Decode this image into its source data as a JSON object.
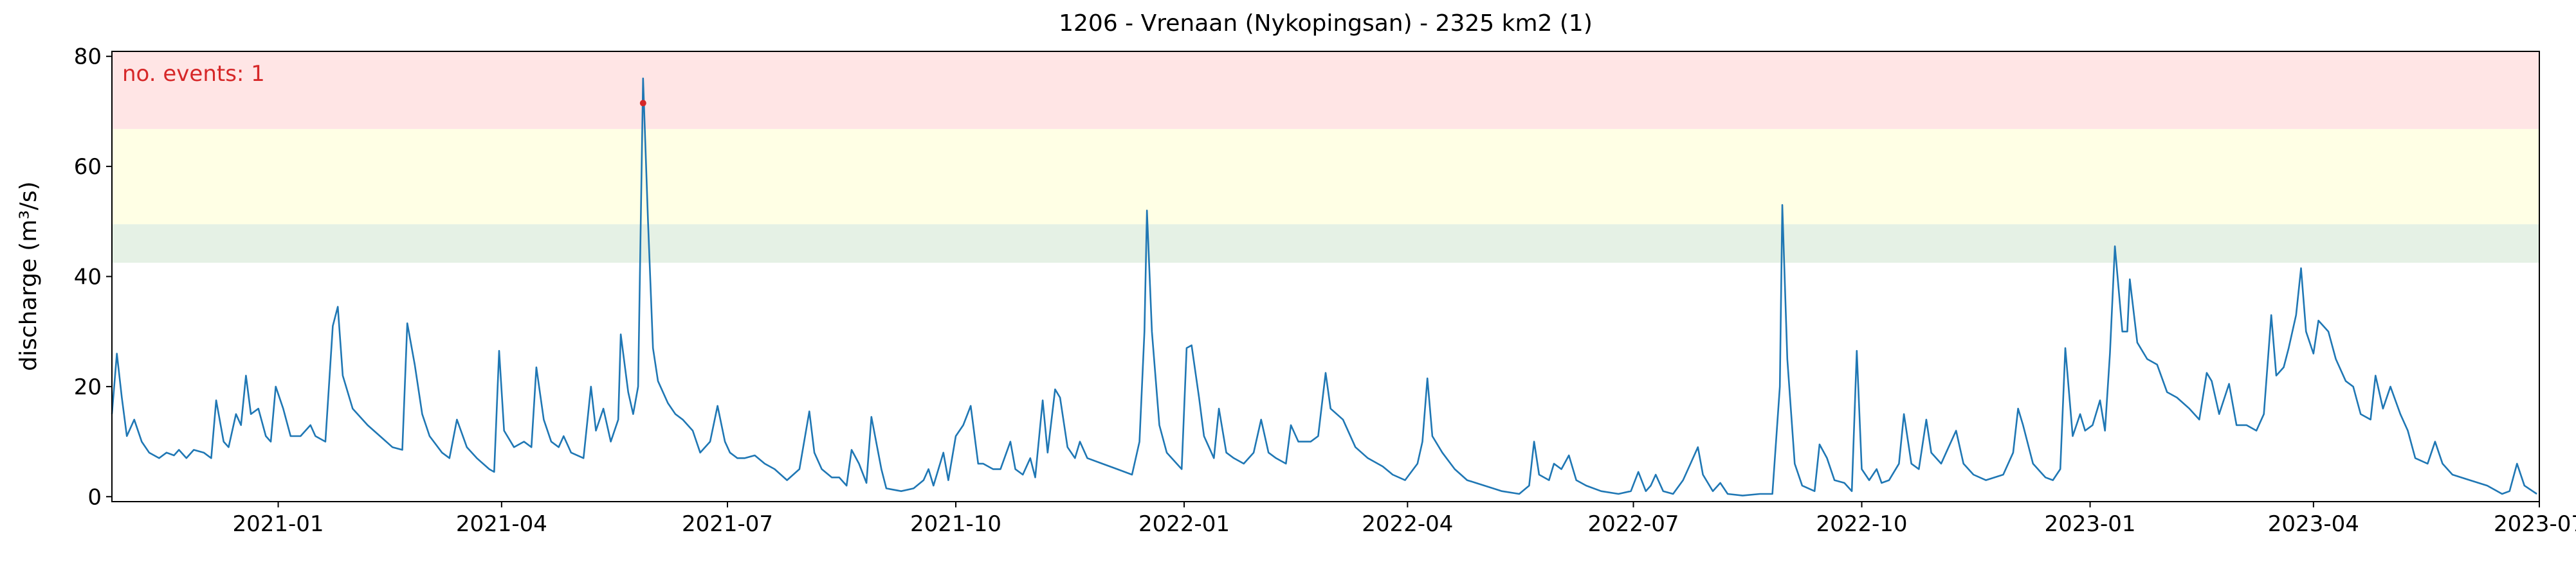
{
  "chart_data": {
    "type": "line",
    "title": "1206 - Vrenaan (Nykopingsan) - 2325 km2 (1)",
    "y_label": "discharge (m³/s)",
    "annotation": "no. events: 1",
    "color": "#1f77b4",
    "x": [
      "2020-10-26",
      "2020-10-28",
      "2020-10-30",
      "2020-11-01",
      "2020-11-04",
      "2020-11-07",
      "2020-11-10",
      "2020-11-14",
      "2020-11-17",
      "2020-11-20",
      "2020-11-22",
      "2020-11-25",
      "2020-11-28",
      "2020-12-02",
      "2020-12-05",
      "2020-12-07",
      "2020-12-10",
      "2020-12-12",
      "2020-12-15",
      "2020-12-17",
      "2020-12-19",
      "2020-12-21",
      "2020-12-24",
      "2020-12-27",
      "2020-12-29",
      "2020-12-31",
      "2021-01-03",
      "2021-01-06",
      "2021-01-10",
      "2021-01-14",
      "2021-01-16",
      "2021-01-20",
      "2021-01-23",
      "2021-01-25",
      "2021-01-27",
      "2021-01-31",
      "2021-02-06",
      "2021-02-11",
      "2021-02-16",
      "2021-02-20",
      "2021-02-22",
      "2021-02-25",
      "2021-02-28",
      "2021-03-03",
      "2021-03-08",
      "2021-03-11",
      "2021-03-14",
      "2021-03-18",
      "2021-03-22",
      "2021-03-27",
      "2021-03-29",
      "2021-03-31",
      "2021-04-02",
      "2021-04-06",
      "2021-04-10",
      "2021-04-13",
      "2021-04-15",
      "2021-04-18",
      "2021-04-21",
      "2021-04-24",
      "2021-04-26",
      "2021-04-29",
      "2021-05-04",
      "2021-05-07",
      "2021-05-09",
      "2021-05-12",
      "2021-05-15",
      "2021-05-18",
      "2021-05-19",
      "2021-05-22",
      "2021-05-24",
      "2021-05-26",
      "2021-05-28",
      "2021-05-30",
      "2021-06-01",
      "2021-06-03",
      "2021-06-07",
      "2021-06-10",
      "2021-06-13",
      "2021-06-17",
      "2021-06-20",
      "2021-06-24",
      "2021-06-27",
      "2021-06-30",
      "2021-07-02",
      "2021-07-05",
      "2021-07-08",
      "2021-07-12",
      "2021-07-16",
      "2021-07-20",
      "2021-07-25",
      "2021-07-30",
      "2021-08-03",
      "2021-08-05",
      "2021-08-08",
      "2021-08-12",
      "2021-08-15",
      "2021-08-18",
      "2021-08-20",
      "2021-08-23",
      "2021-08-26",
      "2021-08-28",
      "2021-09-01",
      "2021-09-03",
      "2021-09-09",
      "2021-09-14",
      "2021-09-18",
      "2021-09-20",
      "2021-09-22",
      "2021-09-26",
      "2021-09-28",
      "2021-10-01",
      "2021-10-04",
      "2021-10-07",
      "2021-10-10",
      "2021-10-12",
      "2021-10-16",
      "2021-10-19",
      "2021-10-23",
      "2021-10-25",
      "2021-10-28",
      "2021-10-31",
      "2021-11-02",
      "2021-11-05",
      "2021-11-07",
      "2021-11-10",
      "2021-11-12",
      "2021-11-15",
      "2021-11-18",
      "2021-11-20",
      "2021-11-23",
      "2021-11-29",
      "2021-12-05",
      "2021-12-11",
      "2021-12-14",
      "2021-12-16",
      "2021-12-17",
      "2021-12-19",
      "2021-12-22",
      "2021-12-25",
      "2021-12-29",
      "2021-12-31",
      "2022-01-02",
      "2022-01-04",
      "2022-01-07",
      "2022-01-09",
      "2022-01-13",
      "2022-01-15",
      "2022-01-18",
      "2022-01-21",
      "2022-01-25",
      "2022-01-29",
      "2022-02-01",
      "2022-02-04",
      "2022-02-07",
      "2022-02-11",
      "2022-02-13",
      "2022-02-16",
      "2022-02-21",
      "2022-02-24",
      "2022-02-27",
      "2022-03-01",
      "2022-03-06",
      "2022-03-11",
      "2022-03-16",
      "2022-03-22",
      "2022-03-26",
      "2022-03-31",
      "2022-04-05",
      "2022-04-07",
      "2022-04-09",
      "2022-04-11",
      "2022-04-15",
      "2022-04-20",
      "2022-04-25",
      "2022-05-02",
      "2022-05-09",
      "2022-05-16",
      "2022-05-20",
      "2022-05-22",
      "2022-05-24",
      "2022-05-28",
      "2022-05-30",
      "2022-06-02",
      "2022-06-05",
      "2022-06-08",
      "2022-06-12",
      "2022-06-18",
      "2022-06-25",
      "2022-06-30",
      "2022-07-03",
      "2022-07-06",
      "2022-07-08",
      "2022-07-10",
      "2022-07-13",
      "2022-07-17",
      "2022-07-21",
      "2022-07-24",
      "2022-07-27",
      "2022-07-29",
      "2022-08-02",
      "2022-08-05",
      "2022-08-08",
      "2022-08-14",
      "2022-08-21",
      "2022-08-26",
      "2022-08-29",
      "2022-08-30",
      "2022-09-01",
      "2022-09-04",
      "2022-09-07",
      "2022-09-12",
      "2022-09-14",
      "2022-09-17",
      "2022-09-20",
      "2022-09-24",
      "2022-09-27",
      "2022-09-29",
      "2022-10-01",
      "2022-10-04",
      "2022-10-07",
      "2022-10-09",
      "2022-10-12",
      "2022-10-16",
      "2022-10-18",
      "2022-10-21",
      "2022-10-24",
      "2022-10-27",
      "2022-10-29",
      "2022-11-02",
      "2022-11-04",
      "2022-11-08",
      "2022-11-11",
      "2022-11-15",
      "2022-11-20",
      "2022-11-27",
      "2022-12-01",
      "2022-12-03",
      "2022-12-05",
      "2022-12-09",
      "2022-12-14",
      "2022-12-17",
      "2022-12-20",
      "2022-12-22",
      "2022-12-25",
      "2022-12-28",
      "2022-12-30",
      "2023-01-02",
      "2023-01-05",
      "2023-01-07",
      "2023-01-09",
      "2023-01-11",
      "2023-01-14",
      "2023-01-16",
      "2023-01-17",
      "2023-01-20",
      "2023-01-24",
      "2023-01-28",
      "2023-02-01",
      "2023-02-05",
      "2023-02-10",
      "2023-02-14",
      "2023-02-17",
      "2023-02-19",
      "2023-02-22",
      "2023-02-26",
      "2023-03-01",
      "2023-03-05",
      "2023-03-09",
      "2023-03-12",
      "2023-03-15",
      "2023-03-17",
      "2023-03-20",
      "2023-03-22",
      "2023-03-25",
      "2023-03-27",
      "2023-03-29",
      "2023-04-01",
      "2023-04-03",
      "2023-04-07",
      "2023-04-10",
      "2023-04-14",
      "2023-04-17",
      "2023-04-20",
      "2023-04-24",
      "2023-04-26",
      "2023-04-29",
      "2023-05-02",
      "2023-05-06",
      "2023-05-09",
      "2023-05-12",
      "2023-05-17",
      "2023-05-20",
      "2023-05-23",
      "2023-05-27",
      "2023-06-03",
      "2023-06-10",
      "2023-06-16",
      "2023-06-19",
      "2023-06-22",
      "2023-06-25",
      "2023-06-30"
    ],
    "values": [
      15,
      26,
      18,
      11,
      14,
      10,
      8,
      7,
      8,
      7.5,
      8.5,
      7,
      8.5,
      8,
      7,
      17.5,
      10,
      9,
      15,
      13,
      22,
      15,
      16,
      11,
      10,
      20,
      16,
      11,
      11,
      13,
      11,
      10,
      31,
      34.5,
      22,
      16,
      13,
      11,
      9,
      8.5,
      31.5,
      24,
      15,
      11,
      8,
      7,
      14,
      9,
      7,
      5,
      4.5,
      26.5,
      12,
      9,
      10,
      9,
      23.5,
      14,
      10,
      9,
      11,
      8,
      7,
      20,
      12,
      16,
      10,
      14,
      29.5,
      19,
      15,
      20,
      76,
      50,
      27,
      21,
      17,
      15,
      14,
      12,
      8,
      10,
      16.5,
      10,
      8,
      7,
      7,
      7.5,
      6,
      5,
      3,
      5,
      15.5,
      8,
      5,
      3.5,
      3.5,
      2,
      8.5,
      6,
      2.5,
      14.5,
      5,
      1.5,
      1,
      1.5,
      3,
      5,
      2,
      8,
      3,
      11,
      13,
      16.5,
      6,
      6,
      5,
      5,
      10,
      5,
      4,
      7,
      3.5,
      17.5,
      8,
      19.5,
      18,
      9,
      7,
      10,
      7,
      6,
      5,
      4,
      10,
      30,
      52,
      30,
      13,
      8,
      6,
      5,
      27,
      27.5,
      18,
      11,
      7,
      16,
      8,
      7,
      6,
      8,
      14,
      8,
      7,
      6,
      13,
      10,
      10,
      11,
      22.5,
      16,
      14,
      9,
      7,
      5.5,
      4,
      3,
      6,
      10,
      21.5,
      11,
      8,
      5,
      3,
      2,
      1,
      0.5,
      2,
      10,
      4,
      3,
      6,
      5,
      7.5,
      3,
      2,
      1,
      0.5,
      1,
      4.5,
      1,
      2,
      4,
      1,
      0.5,
      3,
      6,
      9,
      4,
      1,
      2.5,
      0.5,
      0.2,
      0.5,
      0.5,
      20,
      53,
      25,
      6,
      2,
      1,
      9.5,
      7,
      3,
      2.5,
      1,
      26.5,
      5,
      3,
      5,
      2.5,
      3,
      6,
      15,
      6,
      5,
      14,
      8,
      6,
      8,
      12,
      6,
      4,
      3,
      4,
      8,
      16,
      13,
      6,
      3.5,
      3,
      5,
      27,
      11,
      15,
      12,
      13,
      17.5,
      12,
      26,
      45.5,
      30,
      30,
      39.5,
      28,
      25,
      24,
      19,
      18,
      16,
      14,
      22.5,
      21,
      15,
      20.5,
      13,
      13,
      12,
      15,
      33,
      22,
      23.5,
      27,
      33,
      41.5,
      30,
      26,
      32,
      30,
      25,
      21,
      20,
      15,
      14,
      22,
      16,
      20,
      15,
      12,
      7,
      6,
      10,
      6,
      4,
      3,
      2,
      0.5,
      1,
      6,
      2,
      0.5
    ],
    "events": {
      "x": [
        "2021-05-28"
      ],
      "values": [
        71.5
      ],
      "color": "#d62728"
    },
    "bands": [
      {
        "from": 42.5,
        "to": 49.5,
        "color": "#e5f1e5"
      },
      {
        "from": 49.5,
        "to": 66.8,
        "color": "#ffffe5"
      },
      {
        "from": 66.8,
        "to": 80.9,
        "color": "#ffe5e5"
      }
    ],
    "xlim": [
      "2020-10-26",
      "2023-07-01"
    ],
    "xticks": [
      "2021-01",
      "2021-04",
      "2021-07",
      "2021-10",
      "2022-01",
      "2022-04",
      "2022-07",
      "2022-10",
      "2023-01",
      "2023-04",
      "2023-07"
    ],
    "ylim": [
      -0.9,
      80.9
    ],
    "yticks": [
      0,
      20,
      40,
      60,
      80
    ]
  }
}
